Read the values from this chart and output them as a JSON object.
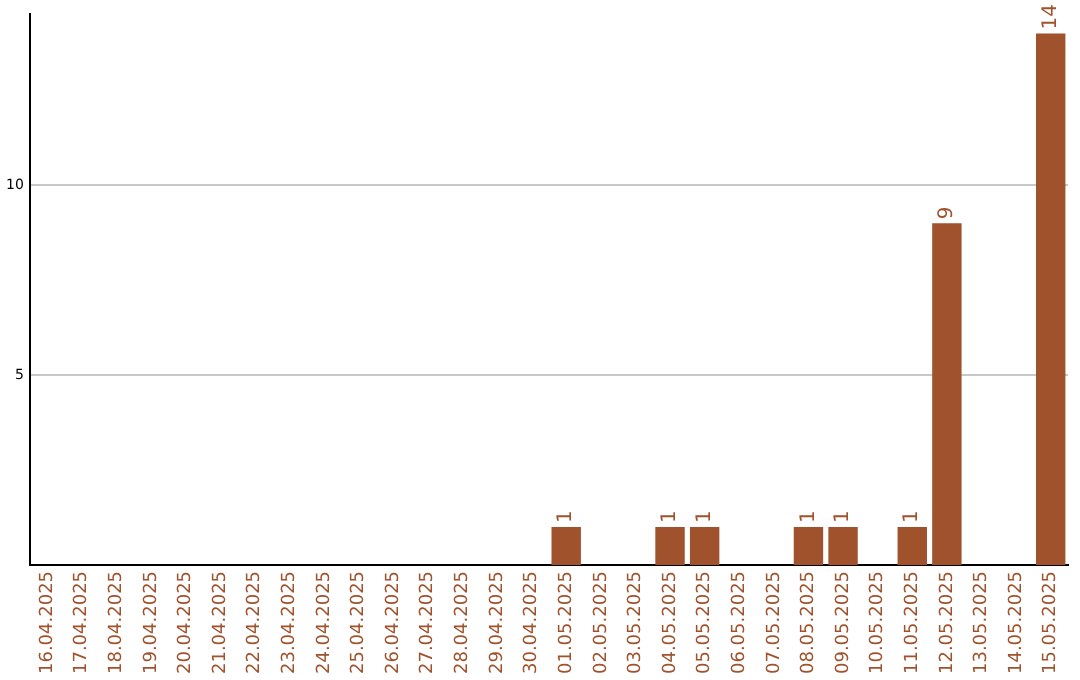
{
  "chart_data": {
    "type": "bar",
    "categories": [
      "16.04.2025",
      "17.04.2025",
      "18.04.2025",
      "19.04.2025",
      "20.04.2025",
      "21.04.2025",
      "22.04.2025",
      "23.04.2025",
      "24.04.2025",
      "25.04.2025",
      "26.04.2025",
      "27.04.2025",
      "28.04.2025",
      "29.04.2025",
      "30.04.2025",
      "01.05.2025",
      "02.05.2025",
      "03.05.2025",
      "04.05.2025",
      "05.05.2025",
      "06.05.2025",
      "07.05.2025",
      "08.05.2025",
      "09.05.2025",
      "10.05.2025",
      "11.05.2025",
      "12.05.2025",
      "13.05.2025",
      "14.05.2025",
      "15.05.2025"
    ],
    "values": [
      0,
      0,
      0,
      0,
      0,
      0,
      0,
      0,
      0,
      0,
      0,
      0,
      0,
      0,
      0,
      1,
      0,
      0,
      1,
      1,
      0,
      0,
      1,
      1,
      0,
      1,
      9,
      0,
      0,
      14
    ],
    "value_labels": [
      null,
      null,
      null,
      null,
      null,
      null,
      null,
      null,
      null,
      null,
      null,
      null,
      null,
      null,
      null,
      "1",
      null,
      null,
      "1",
      "1",
      null,
      null,
      "1",
      "1",
      null,
      "1",
      "9",
      null,
      null,
      "14"
    ],
    "color": "#a0522d",
    "ylim": [
      0,
      14.5
    ],
    "yticks": [
      5,
      10
    ],
    "grid": "y",
    "legend": false
  }
}
